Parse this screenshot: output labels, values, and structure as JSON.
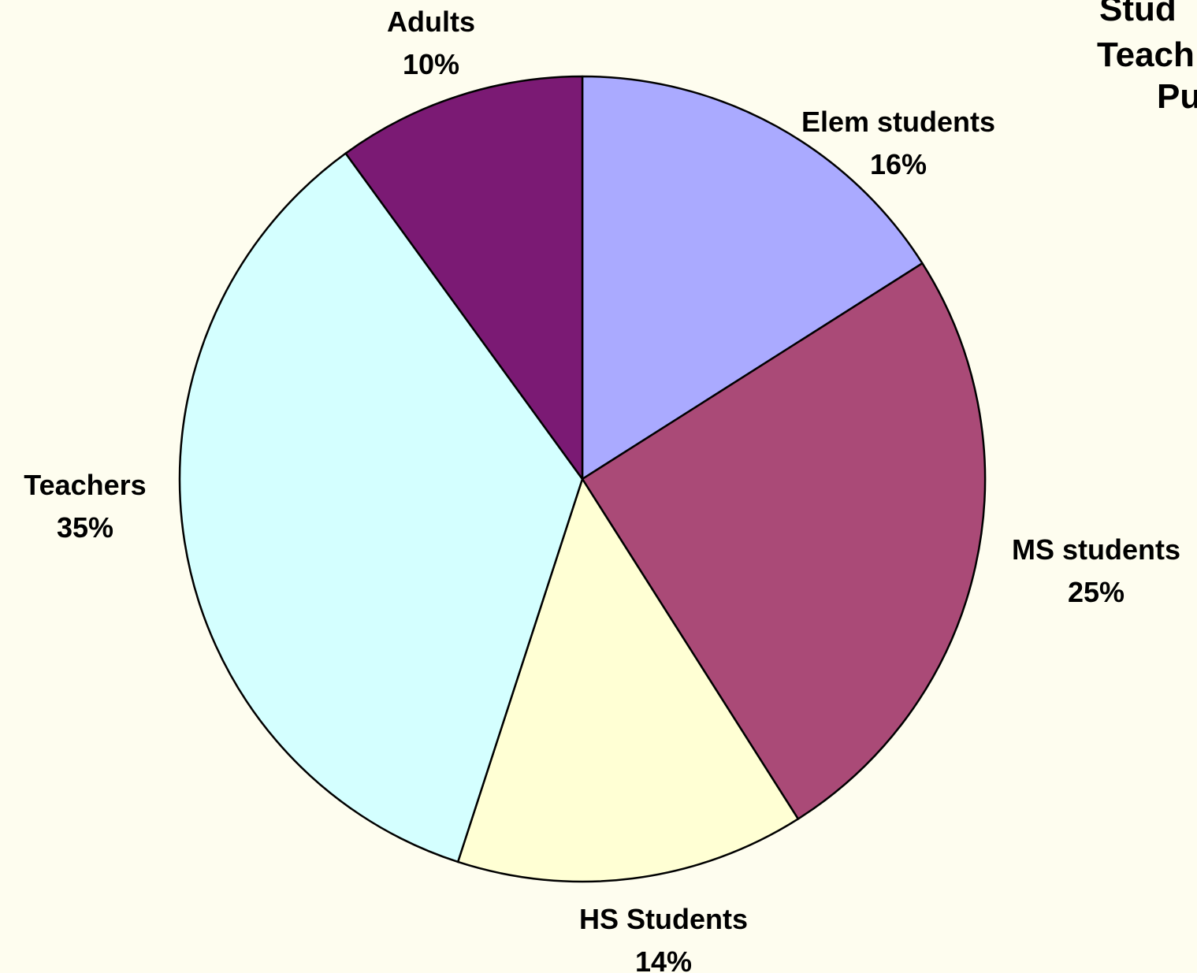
{
  "chart_data": {
    "type": "pie",
    "title_lines": [
      "Stud",
      "Teach",
      "Pu"
    ],
    "slices": [
      {
        "label": "Elem students",
        "value": 16,
        "value_label": "16%",
        "color": "#aaaaff"
      },
      {
        "label": "MS students",
        "value": 25,
        "value_label": "25%",
        "color": "#aa4a77"
      },
      {
        "label": "HS Students",
        "value": 14,
        "value_label": "14%",
        "color": "#ffffd4"
      },
      {
        "label": "Teachers",
        "value": 35,
        "value_label": "35%",
        "color": "#d4ffff"
      },
      {
        "label": "Adults",
        "value": 10,
        "value_label": "10%",
        "color": "#7b1a74"
      }
    ],
    "start_angle": "12 o'clock",
    "direction": "clockwise",
    "background_color": "#fefdef",
    "outline_color": "#000000"
  }
}
